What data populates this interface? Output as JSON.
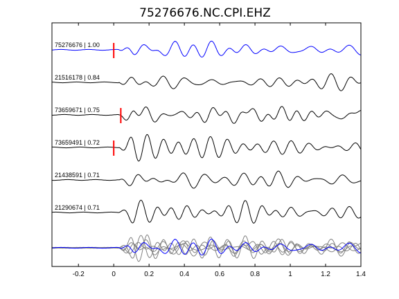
{
  "chart_data": {
    "type": "line",
    "title": "75276676.NC.CPI.EHZ",
    "xlabel": "",
    "ylabel": "",
    "xlim": [
      -0.35,
      1.4
    ],
    "xticks": [
      -0.2,
      0,
      0.2,
      0.4,
      0.6,
      0.8,
      1,
      1.2,
      1.4
    ],
    "xtick_labels": [
      "-0.2",
      "0",
      "0.2",
      "0.4",
      "0.6",
      "0.8",
      "1",
      "1.2",
      "1.4"
    ],
    "grid": false,
    "legend": "none",
    "colors": {
      "reference_trace": "#0000ff",
      "trace": "#000000",
      "stack_trace": "#808080",
      "pick_marker": "#ff0000",
      "axes": "#000000"
    },
    "traces": [
      {
        "label": "75276676 | 1.00",
        "event_id": "75276676",
        "correlation": 1.0,
        "color": "#0000ff",
        "pick_time": 0.0
      },
      {
        "label": "21516178 | 0.84",
        "event_id": "21516178",
        "correlation": 0.84,
        "color": "#000000",
        "pick_time": null
      },
      {
        "label": "73659671 | 0.75",
        "event_id": "73659671",
        "correlation": 0.75,
        "color": "#000000",
        "pick_time": 0.04
      },
      {
        "label": "73659491 | 0.72",
        "event_id": "73659491",
        "correlation": 0.72,
        "color": "#000000",
        "pick_time": 0.0
      },
      {
        "label": "21438591 | 0.71",
        "event_id": "21438591",
        "correlation": 0.71,
        "color": "#000000",
        "pick_time": null
      },
      {
        "label": "21290674 | 0.71",
        "event_id": "21290674",
        "correlation": 0.71,
        "color": "#000000",
        "pick_time": null
      }
    ],
    "overlay": {
      "description_shown": false
    }
  }
}
